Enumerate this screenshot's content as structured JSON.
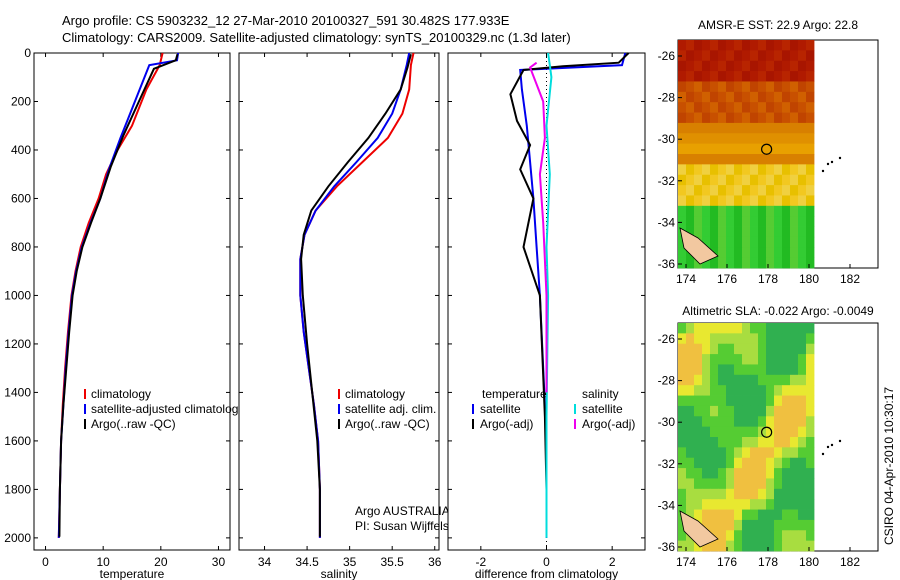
{
  "header": {
    "line1": "Argo profile: CS 5903232_12 27-Mar-2010 20100327_591 30.482S 177.933E",
    "line2": "Climatology: CARS2009. Satellite-adjusted climatology: synTS_20100329.nc (1.3d later)"
  },
  "side_label": "CSIRO 04-Apr-2010 10:30:17",
  "chart_data": [
    {
      "id": "temperature",
      "type": "line",
      "xlabel": "temperature",
      "ylabel": "",
      "xlim": [
        -2,
        32
      ],
      "ylim": [
        2050,
        0
      ],
      "xticks": [
        0,
        10,
        20,
        30
      ],
      "yticks": [
        0,
        200,
        400,
        600,
        800,
        1000,
        1200,
        1400,
        1600,
        1800,
        2000
      ],
      "legend": [
        "climatology",
        "satellite-adjusted climatology",
        "Argo(..raw -QC)"
      ],
      "series": [
        {
          "name": "climatology",
          "color": "#ee0000",
          "x": [
            20.3,
            19.8,
            17.5,
            15,
            12.5,
            10.5,
            9.2,
            7.5,
            6.1,
            5.2,
            4.5,
            3.9,
            3.4,
            3.0,
            2.7,
            2.5,
            2.3
          ],
          "y": [
            0,
            50,
            150,
            300,
            400,
            500,
            600,
            700,
            800,
            900,
            1000,
            1150,
            1300,
            1450,
            1600,
            1800,
            2000
          ]
        },
        {
          "name": "satellite-adjusted climatology",
          "color": "#0000ee",
          "x": [
            23,
            22.8,
            18,
            15.5,
            13,
            11,
            9.5,
            7.8,
            6.3,
            5.3,
            4.6,
            4.0,
            3.5,
            3.1,
            2.7,
            2.5,
            2.3
          ],
          "y": [
            0,
            30,
            50,
            200,
            350,
            480,
            600,
            700,
            800,
            900,
            1000,
            1150,
            1300,
            1450,
            1600,
            1800,
            2000
          ]
        },
        {
          "name": "Argo(..raw -QC)",
          "color": "#000000",
          "x": [
            22.9,
            22.6,
            18.8,
            16.2,
            13.5,
            11.3,
            9.5,
            7.9,
            6.4,
            5.4,
            4.7,
            4.1,
            3.6,
            3.1,
            2.7,
            2.5,
            2.4
          ],
          "y": [
            5,
            30,
            65,
            200,
            340,
            470,
            600,
            700,
            800,
            900,
            1000,
            1150,
            1300,
            1450,
            1600,
            1800,
            1995
          ]
        }
      ]
    },
    {
      "id": "salinity",
      "type": "line",
      "xlabel": "salinity",
      "ylabel": "",
      "xlim": [
        33.7,
        36.05
      ],
      "ylim": [
        2050,
        0
      ],
      "xticks": [
        34,
        34.5,
        35,
        35.5,
        36
      ],
      "yticks": [
        0,
        200,
        400,
        600,
        800,
        1000,
        1200,
        1400,
        1600,
        1800,
        2000
      ],
      "legend": [
        "climatology",
        "satellite adj. clim.",
        "Argo(..raw -QC)"
      ],
      "annotations": [
        "Argo AUSTRALIA",
        "PI: Susan Wijffels"
      ],
      "series": [
        {
          "name": "climatology",
          "color": "#ee0000",
          "x": [
            35.75,
            35.72,
            35.7,
            35.62,
            35.45,
            35.15,
            34.85,
            34.6,
            34.47,
            34.42,
            34.42,
            34.46,
            34.52,
            34.58,
            34.63,
            34.65,
            34.65
          ],
          "y": [
            0,
            50,
            150,
            250,
            350,
            450,
            550,
            650,
            750,
            850,
            1000,
            1150,
            1300,
            1450,
            1600,
            1800,
            2000
          ]
        },
        {
          "name": "satellite adj. clim.",
          "color": "#0000ee",
          "x": [
            35.7,
            35.67,
            35.6,
            35.5,
            35.33,
            35.08,
            34.82,
            34.6,
            34.47,
            34.42,
            34.42,
            34.46,
            34.52,
            34.58,
            34.63,
            34.65,
            34.65
          ],
          "y": [
            0,
            50,
            150,
            250,
            350,
            450,
            550,
            650,
            750,
            850,
            1000,
            1150,
            1300,
            1450,
            1600,
            1800,
            2000
          ]
        },
        {
          "name": "Argo(..raw -QC)",
          "color": "#000000",
          "x": [
            35.72,
            35.68,
            35.6,
            35.42,
            35.22,
            34.98,
            34.75,
            34.55,
            34.46,
            34.43,
            34.45,
            34.5,
            34.56,
            34.62,
            34.65,
            34.65
          ],
          "y": [
            5,
            60,
            150,
            250,
            350,
            450,
            550,
            650,
            750,
            850,
            1000,
            1200,
            1400,
            1600,
            1800,
            1995
          ]
        }
      ]
    },
    {
      "id": "difference",
      "type": "line",
      "xlabel": "difference from climatology",
      "ylabel": "",
      "xlim": [
        -3,
        3
      ],
      "ylim": [
        2050,
        0
      ],
      "xticks": [
        -2,
        0,
        2
      ],
      "yticks": [
        0,
        200,
        400,
        600,
        800,
        1000,
        1200,
        1400,
        1600,
        1800,
        2000
      ],
      "legend_headers": [
        "temperature",
        "salinity"
      ],
      "legend": [
        "satellite",
        "Argo(-adj)",
        "satellite",
        "Argo(-adj)"
      ],
      "series": [
        {
          "name": "satellite",
          "group": "temperature",
          "color": "#0000ee",
          "x": [
            2.4,
            2.3,
            -0.8,
            -0.75,
            -0.6,
            -0.5,
            -0.4,
            -0.3,
            -0.2,
            -0.1,
            0,
            0
          ],
          "y": [
            0,
            50,
            70,
            150,
            300,
            450,
            600,
            800,
            1000,
            1300,
            1600,
            2000
          ]
        },
        {
          "name": "Argo(-adj)",
          "group": "temperature",
          "color": "#000000",
          "x": [
            2.5,
            2.2,
            0.5,
            -0.7,
            -1.1,
            -0.9,
            -0.5,
            -0.8,
            -0.4,
            -0.7,
            -0.2,
            -0.05,
            0
          ],
          "y": [
            0,
            40,
            55,
            70,
            170,
            280,
            380,
            480,
            600,
            800,
            1000,
            1500,
            1800
          ]
        },
        {
          "name": "satellite",
          "group": "salinity",
          "color": "#00dddd",
          "x": [
            0.05,
            0.1,
            0.15,
            0.0,
            0.1,
            0.0,
            0.05,
            0.0,
            0.0
          ],
          "y": [
            0,
            50,
            100,
            300,
            500,
            800,
            1000,
            1500,
            2000
          ]
        },
        {
          "name": "Argo(-adj)",
          "group": "salinity",
          "color": "#ee00ee",
          "x": [
            -0.3,
            -0.5,
            -0.1,
            -0.05,
            -0.2,
            -0.1,
            0,
            0
          ],
          "y": [
            40,
            60,
            200,
            350,
            500,
            700,
            1000,
            1400
          ]
        }
      ]
    }
  ],
  "maps": [
    {
      "title": "AMSR-E SST: 22.9 Argo: 22.8",
      "xticks": [
        174,
        176,
        178,
        180,
        182
      ],
      "yticks": [
        -26,
        -28,
        -30,
        -32,
        -34,
        -36
      ],
      "marker_label": "profile location"
    },
    {
      "title": "Altimetric SLA: -0.022 Argo: -0.0049",
      "xticks": [
        174,
        176,
        178,
        180,
        182
      ],
      "yticks": [
        -26,
        -28,
        -30,
        -32,
        -34,
        -36
      ],
      "marker_label": "profile location"
    }
  ]
}
